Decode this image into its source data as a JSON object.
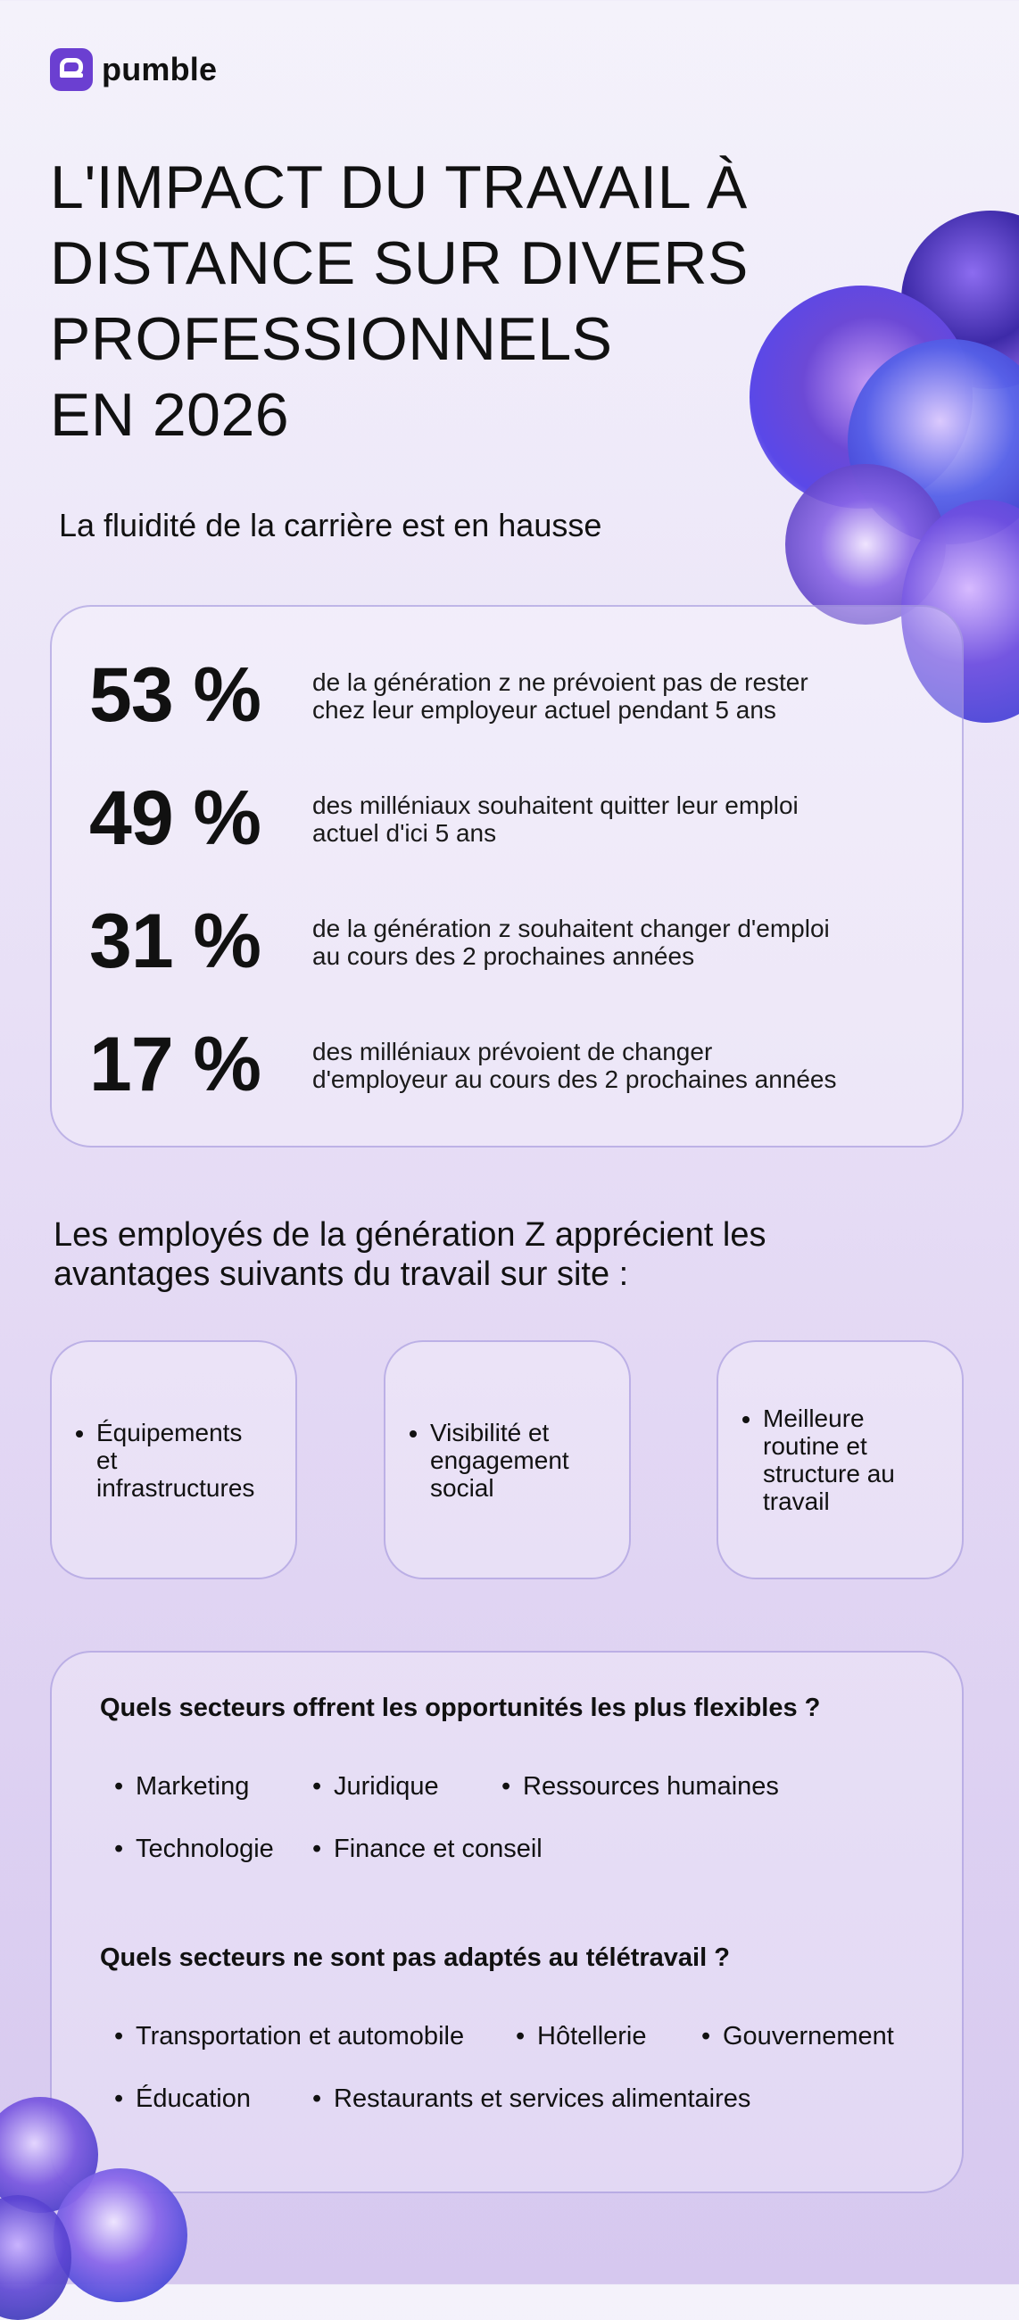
{
  "brand": {
    "name": "pumble"
  },
  "title_lines": [
    "L'IMPACT DU TRAVAIL À",
    "DISTANCE SUR DIVERS",
    "PROFESSIONNELS",
    "EN 2026"
  ],
  "section1": {
    "heading": "La fluidité de la carrière est en hausse",
    "stats": [
      {
        "value": "53 %",
        "line1": "de la génération z ne prévoient pas de rester",
        "line2": "chez leur employeur actuel pendant 5 ans"
      },
      {
        "value": "49 %",
        "line1": "des milléniaux souhaitent quitter leur emploi",
        "line2": "actuel d'ici 5 ans"
      },
      {
        "value": "31 %",
        "line1": "de la génération z souhaitent changer d'emploi",
        "line2": "au cours des 2 prochaines années"
      },
      {
        "value": "17 %",
        "line1": "des milléniaux prévoient de changer",
        "line2": "d'employeur au cours des 2 prochaines années"
      }
    ]
  },
  "section2": {
    "heading_line1": "Les employés de la génération Z apprécient les",
    "heading_line2": "avantages suivants du travail sur site :",
    "benefits": [
      [
        "Équipements",
        "et",
        "infrastructures"
      ],
      [
        "Visibilité et",
        "engagement",
        "social"
      ],
      [
        "Meilleure",
        "routine et",
        "structure au",
        "travail"
      ]
    ]
  },
  "section3": {
    "flexible_question": "Quels secteurs offrent les opportunités les plus flexibles ?",
    "flexible_row1": [
      "Marketing",
      "Juridique",
      "Ressources humaines"
    ],
    "flexible_row2": [
      "Technologie",
      "Finance et conseil"
    ],
    "unsuitable_question": "Quels secteurs ne sont pas adaptés au télétravail ?",
    "unsuitable_row1": [
      "Transportation et automobile",
      "Hôtellerie",
      "Gouvernement"
    ],
    "unsuitable_row2": [
      "Éducation",
      "Restaurants et services alimentaires"
    ]
  },
  "colors": {
    "brand_purple": "#6b3fd1",
    "card_border": "#9687d7"
  },
  "icons": {
    "logo": "pumble-logo-icon",
    "decor": "glass-blob-decoration"
  }
}
